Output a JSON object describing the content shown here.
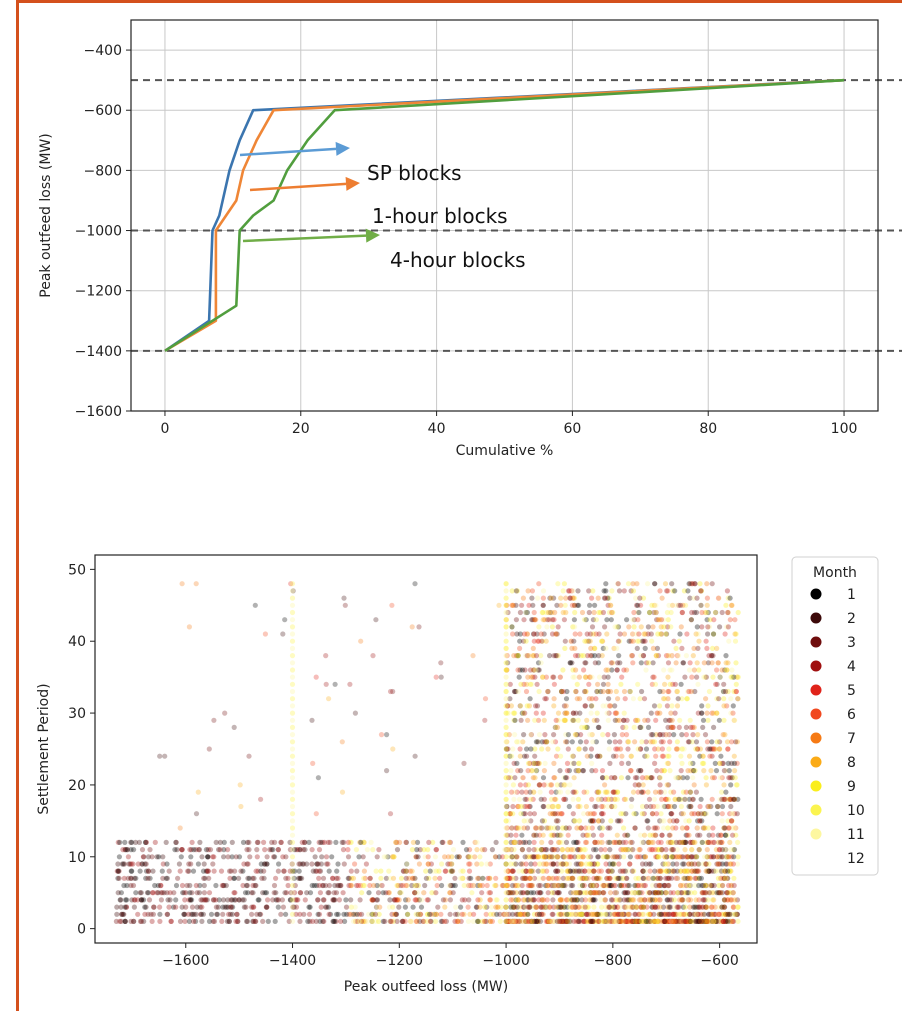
{
  "theme": {
    "frame_color": "#d4501c",
    "grid_color": "#c8c8c8",
    "ref_line_color": "#555555"
  },
  "chart_data": [
    {
      "type": "line",
      "title": "",
      "xlabel": "Cumulative %",
      "ylabel": "Peak outfeed loss (MW)",
      "xlim": [
        -5,
        105
      ],
      "ylim": [
        -1600,
        -300
      ],
      "xticks": [
        0,
        20,
        40,
        60,
        80,
        100
      ],
      "yticks": [
        -400,
        -600,
        -800,
        -1000,
        -1200,
        -1400,
        -1600
      ],
      "grid": true,
      "hlines": [
        -500,
        -1000,
        -1400
      ],
      "series": [
        {
          "name": "SP blocks",
          "color": "#3b75af",
          "points": [
            [
              0,
              -1400
            ],
            [
              6.5,
              -1300
            ],
            [
              7,
              -1000
            ],
            [
              8,
              -950
            ],
            [
              9.5,
              -800
            ],
            [
              11,
              -700
            ],
            [
              13,
              -600
            ],
            [
              100,
              -500
            ]
          ]
        },
        {
          "name": "1-hour blocks",
          "color": "#ef8636",
          "points": [
            [
              0,
              -1400
            ],
            [
              7.5,
              -1300
            ],
            [
              7.5,
              -1000
            ],
            [
              9,
              -950
            ],
            [
              10.5,
              -900
            ],
            [
              11.5,
              -800
            ],
            [
              13.5,
              -700
            ],
            [
              16,
              -600
            ],
            [
              100,
              -500
            ]
          ]
        },
        {
          "name": "4-hour blocks",
          "color": "#519e3e",
          "points": [
            [
              0,
              -1400
            ],
            [
              10.5,
              -1250
            ],
            [
              11,
              -1000
            ],
            [
              13,
              -950
            ],
            [
              16,
              -900
            ],
            [
              18,
              -800
            ],
            [
              21,
              -700
            ],
            [
              25,
              -600
            ],
            [
              100,
              -500
            ]
          ]
        }
      ],
      "annotations": [
        {
          "text": "SP blocks",
          "arrow_color": "#5b9bd5",
          "x": 30,
          "y": -810
        },
        {
          "text": "1-hour blocks",
          "arrow_color": "#ed7d31",
          "x": 30,
          "y": -940
        },
        {
          "text": "4-hour blocks",
          "arrow_color": "#70ad47",
          "x": 33,
          "y": -1090
        }
      ]
    },
    {
      "type": "scatter",
      "title": "",
      "xlabel": "Peak outfeed loss (MW)",
      "ylabel": "Settlement Period)",
      "xlim": [
        -1770,
        -530
      ],
      "ylim": [
        -2,
        52
      ],
      "xticks": [
        -1600,
        -1400,
        -1200,
        -1000,
        -800,
        -600
      ],
      "yticks": [
        0,
        10,
        20,
        30,
        40,
        50
      ],
      "grid": false,
      "legend": {
        "title": "Month",
        "placement": "right-outside",
        "entries": [
          {
            "label": "1",
            "color": "#000000"
          },
          {
            "label": "2",
            "color": "#3d0a0a"
          },
          {
            "label": "3",
            "color": "#6f0d0d"
          },
          {
            "label": "4",
            "color": "#a01010"
          },
          {
            "label": "5",
            "color": "#e0231a"
          },
          {
            "label": "6",
            "color": "#f1481f"
          },
          {
            "label": "7",
            "color": "#f67a14"
          },
          {
            "label": "8",
            "color": "#fbab17"
          },
          {
            "label": "9",
            "color": "#faee1c"
          },
          {
            "label": "10",
            "color": "#fbf44f"
          },
          {
            "label": "11",
            "color": "#fdf7a0"
          },
          {
            "label": "12",
            "color": "#ffffff"
          }
        ]
      },
      "points": []
    }
  ]
}
